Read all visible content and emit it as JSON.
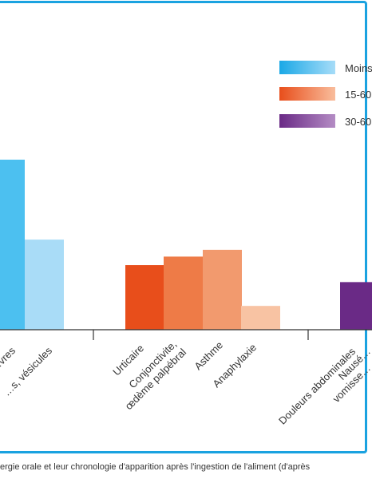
{
  "chart_data": {
    "type": "bar",
    "legend": {
      "placement": "top-right",
      "entries": [
        {
          "label": "Moins",
          "color_from": "#1aa8e6",
          "color_to": "#a6dcf8"
        },
        {
          "label": "15-60",
          "color_from": "#e84e1b",
          "color_to": "#f9bd9c"
        },
        {
          "label": "30-60",
          "color_from": "#6a2a86",
          "color_to": "#b48cc4"
        }
      ]
    },
    "bars": [
      {
        "label": "…vres",
        "group": 0,
        "value": 100,
        "color": "#4cc0f0"
      },
      {
        "label": "…s, vésicules",
        "group": 0,
        "value": 53,
        "color": "#a9dcf7"
      },
      {
        "label": "Urticaire",
        "group": 1,
        "value": 38,
        "color": "#e84e1b"
      },
      {
        "label": "Conjonctivite, œdème palpébral",
        "group": 1,
        "value": 43,
        "color": "#ee7b47"
      },
      {
        "label": "Asthme",
        "group": 1,
        "value": 47,
        "color": "#f29a6e"
      },
      {
        "label": "Anaphylaxie",
        "group": 1,
        "value": 14,
        "color": "#f8c3a3"
      },
      {
        "label": "Douleurs abdominales",
        "group": 2,
        "value": 28,
        "color": "#6a2a86"
      },
      {
        "label": "Nausé… vomisse…",
        "group": 2,
        "value": 0,
        "color": "#7e3d98"
      }
    ],
    "ylim": [
      0,
      100
    ],
    "grid": false
  },
  "caption": "ergie orale et leur chronologie d'apparition après l'ingestion de l'aliment (d'après"
}
